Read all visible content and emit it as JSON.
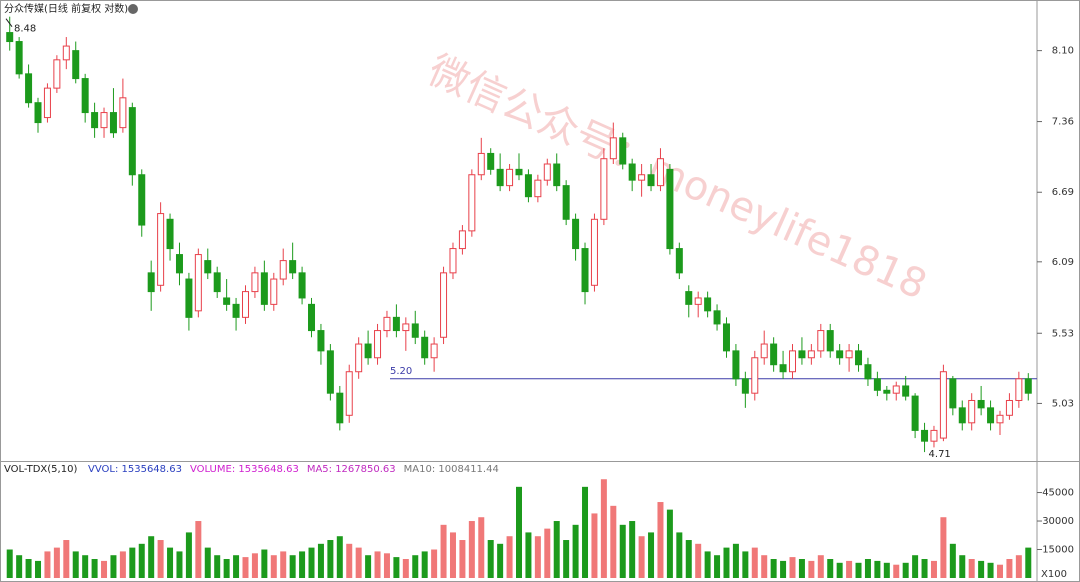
{
  "chart_data": [
    {
      "type": "candlestick",
      "title": "分众传媒(日线 前复权 对数)",
      "yscale": "log",
      "up_color": "#e8404a",
      "down_color": "#1c9a1c",
      "ylim": [
        4.66,
        8.58
      ],
      "yticks": [
        {
          "value": 8.1,
          "label": "8.10"
        },
        7.36,
        6.69,
        6.09,
        5.53,
        5.03
      ],
      "hline": {
        "value": 5.2,
        "label": "5.20",
        "color": "#3c3ca8"
      },
      "watermark": "微信公众号：moneylife1818",
      "ohlc": [
        [
          8.3,
          8.48,
          8.1,
          8.2
        ],
        [
          8.2,
          8.25,
          7.8,
          7.85
        ],
        [
          7.85,
          7.95,
          7.5,
          7.55
        ],
        [
          7.55,
          7.6,
          7.25,
          7.35
        ],
        [
          7.4,
          7.75,
          7.35,
          7.7
        ],
        [
          7.7,
          8.05,
          7.65,
          8.0
        ],
        [
          8.0,
          8.25,
          7.9,
          8.15
        ],
        [
          8.1,
          8.2,
          7.75,
          7.8
        ],
        [
          7.8,
          7.85,
          7.35,
          7.45
        ],
        [
          7.45,
          7.55,
          7.2,
          7.3
        ],
        [
          7.3,
          7.5,
          7.2,
          7.45
        ],
        [
          7.45,
          7.7,
          7.2,
          7.25
        ],
        [
          7.3,
          7.8,
          7.25,
          7.6
        ],
        [
          7.5,
          7.55,
          6.75,
          6.85
        ],
        [
          6.85,
          6.9,
          6.3,
          6.4
        ],
        [
          6.0,
          6.1,
          5.7,
          5.85
        ],
        [
          5.9,
          6.6,
          5.85,
          6.5
        ],
        [
          6.45,
          6.5,
          6.1,
          6.2
        ],
        [
          6.15,
          6.25,
          5.9,
          6.0
        ],
        [
          5.95,
          6.0,
          5.55,
          5.65
        ],
        [
          5.7,
          6.2,
          5.65,
          6.15
        ],
        [
          6.1,
          6.2,
          5.95,
          6.0
        ],
        [
          6.0,
          6.05,
          5.8,
          5.85
        ],
        [
          5.8,
          5.95,
          5.7,
          5.75
        ],
        [
          5.75,
          5.8,
          5.55,
          5.65
        ],
        [
          5.65,
          5.9,
          5.6,
          5.85
        ],
        [
          5.85,
          6.05,
          5.8,
          6.0
        ],
        [
          6.0,
          6.1,
          5.7,
          5.75
        ],
        [
          5.75,
          6.0,
          5.7,
          5.95
        ],
        [
          5.95,
          6.2,
          5.9,
          6.1
        ],
        [
          6.1,
          6.25,
          5.95,
          6.0
        ],
        [
          6.0,
          6.05,
          5.75,
          5.8
        ],
        [
          5.75,
          5.8,
          5.5,
          5.55
        ],
        [
          5.55,
          5.6,
          5.3,
          5.4
        ],
        [
          5.4,
          5.45,
          5.05,
          5.1
        ],
        [
          5.1,
          5.15,
          4.85,
          4.9
        ],
        [
          4.95,
          5.3,
          4.9,
          5.25
        ],
        [
          5.25,
          5.5,
          5.2,
          5.45
        ],
        [
          5.45,
          5.55,
          5.3,
          5.35
        ],
        [
          5.35,
          5.6,
          5.3,
          5.55
        ],
        [
          5.55,
          5.7,
          5.5,
          5.65
        ],
        [
          5.65,
          5.75,
          5.5,
          5.55
        ],
        [
          5.55,
          5.65,
          5.4,
          5.6
        ],
        [
          5.6,
          5.7,
          5.45,
          5.5
        ],
        [
          5.5,
          5.55,
          5.3,
          5.35
        ],
        [
          5.35,
          5.5,
          5.25,
          5.45
        ],
        [
          5.5,
          6.05,
          5.45,
          6.0
        ],
        [
          6.0,
          6.25,
          5.95,
          6.2
        ],
        [
          6.2,
          6.4,
          6.15,
          6.35
        ],
        [
          6.35,
          6.9,
          6.3,
          6.85
        ],
        [
          6.85,
          7.2,
          6.8,
          7.05
        ],
        [
          7.05,
          7.1,
          6.85,
          6.9
        ],
        [
          6.9,
          7.05,
          6.7,
          6.75
        ],
        [
          6.75,
          6.95,
          6.7,
          6.9
        ],
        [
          6.9,
          7.05,
          6.8,
          6.85
        ],
        [
          6.85,
          6.9,
          6.6,
          6.65
        ],
        [
          6.65,
          6.85,
          6.6,
          6.8
        ],
        [
          6.8,
          7.0,
          6.75,
          6.95
        ],
        [
          6.95,
          7.05,
          6.7,
          6.75
        ],
        [
          6.75,
          6.8,
          6.4,
          6.45
        ],
        [
          6.45,
          6.5,
          6.1,
          6.2
        ],
        [
          6.2,
          6.25,
          5.75,
          5.85
        ],
        [
          5.9,
          6.5,
          5.85,
          6.45
        ],
        [
          6.45,
          7.1,
          6.4,
          7.0
        ],
        [
          7.0,
          7.35,
          6.95,
          7.2
        ],
        [
          7.2,
          7.25,
          6.9,
          6.95
        ],
        [
          6.95,
          7.0,
          6.7,
          6.8
        ],
        [
          6.8,
          6.95,
          6.65,
          6.85
        ],
        [
          6.85,
          6.95,
          6.7,
          6.75
        ],
        [
          6.75,
          7.1,
          6.7,
          7.0
        ],
        [
          6.9,
          6.95,
          6.15,
          6.2
        ],
        [
          6.2,
          6.25,
          5.95,
          6.0
        ],
        [
          5.85,
          5.9,
          5.65,
          5.75
        ],
        [
          5.75,
          5.85,
          5.65,
          5.8
        ],
        [
          5.8,
          5.85,
          5.65,
          5.7
        ],
        [
          5.7,
          5.75,
          5.55,
          5.6
        ],
        [
          5.6,
          5.65,
          5.35,
          5.4
        ],
        [
          5.4,
          5.45,
          5.15,
          5.2
        ],
        [
          5.2,
          5.25,
          5.0,
          5.1
        ],
        [
          5.1,
          5.4,
          5.05,
          5.35
        ],
        [
          5.35,
          5.55,
          5.3,
          5.45
        ],
        [
          5.45,
          5.5,
          5.25,
          5.3
        ],
        [
          5.3,
          5.4,
          5.2,
          5.25
        ],
        [
          5.25,
          5.45,
          5.2,
          5.4
        ],
        [
          5.4,
          5.5,
          5.3,
          5.35
        ],
        [
          5.35,
          5.45,
          5.3,
          5.4
        ],
        [
          5.4,
          5.6,
          5.35,
          5.55
        ],
        [
          5.55,
          5.6,
          5.35,
          5.4
        ],
        [
          5.4,
          5.45,
          5.3,
          5.35
        ],
        [
          5.35,
          5.45,
          5.25,
          5.4
        ],
        [
          5.4,
          5.45,
          5.25,
          5.3
        ],
        [
          5.3,
          5.35,
          5.15,
          5.2
        ],
        [
          5.2,
          5.25,
          5.08,
          5.12
        ],
        [
          5.12,
          5.15,
          5.05,
          5.1
        ],
        [
          5.1,
          5.18,
          5.05,
          5.15
        ],
        [
          5.15,
          5.22,
          5.05,
          5.08
        ],
        [
          5.08,
          5.1,
          4.8,
          4.85
        ],
        [
          4.85,
          4.9,
          4.71,
          4.78
        ],
        [
          4.78,
          4.88,
          4.74,
          4.85
        ],
        [
          4.8,
          5.3,
          4.78,
          5.25
        ],
        [
          5.2,
          5.22,
          4.95,
          5.0
        ],
        [
          5.0,
          5.05,
          4.85,
          4.9
        ],
        [
          4.9,
          5.1,
          4.85,
          5.05
        ],
        [
          5.05,
          5.15,
          4.95,
          5.0
        ],
        [
          5.0,
          5.05,
          4.85,
          4.9
        ],
        [
          4.9,
          4.98,
          4.82,
          4.95
        ],
        [
          4.95,
          5.1,
          4.92,
          5.05
        ],
        [
          5.05,
          5.25,
          5.0,
          5.2
        ],
        [
          5.2,
          5.24,
          5.05,
          5.1
        ]
      ]
    },
    {
      "type": "bar",
      "title": "VOL-TDX(5,10)",
      "unit_label": "X100",
      "indicators": [
        {
          "label": "VVOL: 1535648.63",
          "color": "#2a3fbf"
        },
        {
          "label": "VOLUME: 1535648.63",
          "color": "#d020d0"
        },
        {
          "label": "MA5: 1267850.63",
          "color": "#c02ac0"
        },
        {
          "label": "MA10: 1008411.44",
          "color": "#777777"
        }
      ],
      "ylim": [
        0,
        59500
      ],
      "yticks": [
        15000,
        30000,
        45000
      ],
      "values": [
        15000,
        12000,
        10000,
        9000,
        14000,
        16000,
        20000,
        14000,
        12000,
        10000,
        9000,
        12000,
        14000,
        16000,
        18000,
        22000,
        20000,
        16000,
        14000,
        24000,
        30000,
        16000,
        12000,
        10000,
        12000,
        11000,
        13000,
        15000,
        12000,
        14000,
        12000,
        14000,
        16000,
        18000,
        20000,
        22000,
        18000,
        16000,
        12000,
        14000,
        13000,
        11000,
        10000,
        12000,
        14000,
        15000,
        28000,
        24000,
        20000,
        30000,
        32000,
        20000,
        18000,
        22000,
        48000,
        24000,
        22000,
        26000,
        30000,
        20000,
        28000,
        48000,
        34000,
        52000,
        38000,
        28000,
        30000,
        22000,
        24000,
        40000,
        36000,
        24000,
        20000,
        18000,
        14000,
        12000,
        16000,
        18000,
        14000,
        16000,
        12000,
        10000,
        9000,
        11000,
        10000,
        9000,
        12000,
        10000,
        8000,
        9000,
        8000,
        10000,
        9000,
        8000,
        7000,
        8000,
        12000,
        10000,
        9000,
        32000,
        18000,
        12000,
        10000,
        9000,
        8000,
        7000,
        10000,
        12000,
        16000
      ]
    }
  ]
}
